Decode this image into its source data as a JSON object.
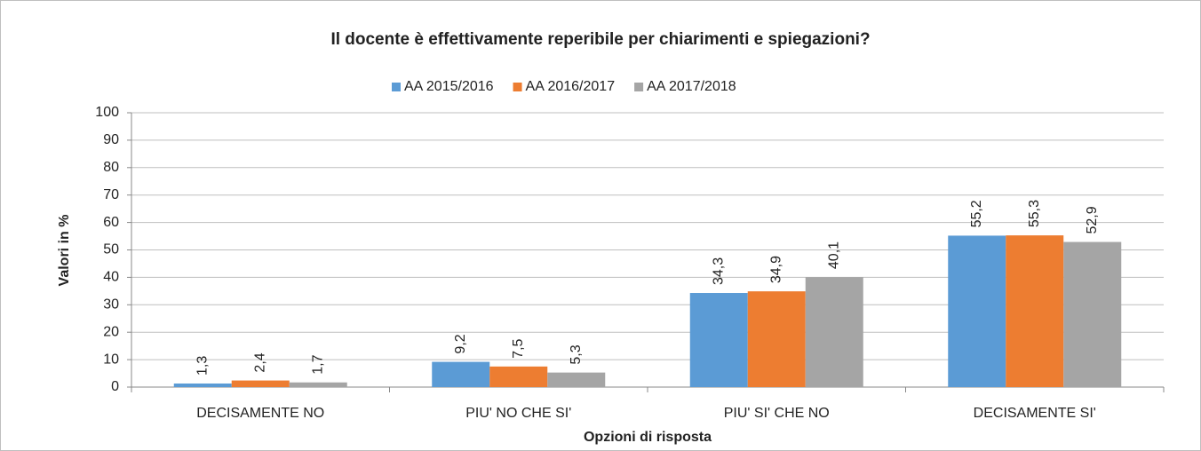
{
  "chart_data": {
    "type": "bar",
    "title": "Il docente è effettivamente reperibile per chiarimenti e spiegazioni?",
    "y_label": "Valori in %",
    "x_label": "Opzioni di risposta",
    "categories": [
      "DECISAMENTE NO",
      "PIU' NO CHE SI'",
      "PIU' SI' CHE NO",
      "DECISAMENTE SI'"
    ],
    "series": [
      {
        "name": "AA 2015/2016",
        "color": "#5b9bd5",
        "values": [
          1.3,
          9.2,
          34.3,
          55.2
        ],
        "value_labels": [
          "1,3",
          "9,2",
          "34,3",
          "55,2"
        ]
      },
      {
        "name": "AA 2016/2017",
        "color": "#ed7d31",
        "values": [
          2.4,
          7.5,
          34.9,
          55.3
        ],
        "value_labels": [
          "2,4",
          "7,5",
          "34,9",
          "55,3"
        ]
      },
      {
        "name": "AA 2017/2018",
        "color": "#a5a5a5",
        "values": [
          1.7,
          5.3,
          40.1,
          52.9
        ],
        "value_labels": [
          "1,7",
          "5,3",
          "40,1",
          "52,9"
        ]
      }
    ],
    "ylim": [
      0,
      100
    ],
    "yticks": [
      0,
      10,
      20,
      30,
      40,
      50,
      60,
      70,
      80,
      90,
      100
    ],
    "grid": true,
    "legend": "top"
  }
}
